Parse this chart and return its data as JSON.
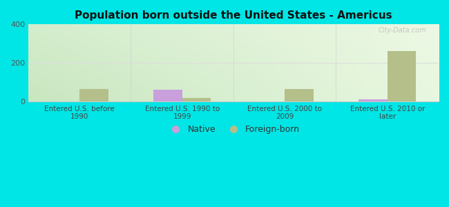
{
  "title": "Population born outside the United States - Americus",
  "categories": [
    "Entered U.S. before\n1990",
    "Entered U.S. 1990 to\n1999",
    "Entered U.S. 2000 to\n2009",
    "Entered U.S. 2010 or\nlater"
  ],
  "native_values": [
    0,
    60,
    0,
    12
  ],
  "foreign_values": [
    65,
    18,
    65,
    260
  ],
  "native_color": "#c9a0dc",
  "foreign_color": "#b5bf8a",
  "grad_top_left": "#c8e6c0",
  "grad_top_right": "#e8f5e0",
  "grad_bottom": "#f5fff5",
  "outer_bg": "#00e5e5",
  "ylim": [
    0,
    400
  ],
  "yticks": [
    0,
    200,
    400
  ],
  "bar_width": 0.28,
  "legend_native": "Native",
  "legend_foreign": "Foreign-born",
  "watermark": "City-Data.com"
}
